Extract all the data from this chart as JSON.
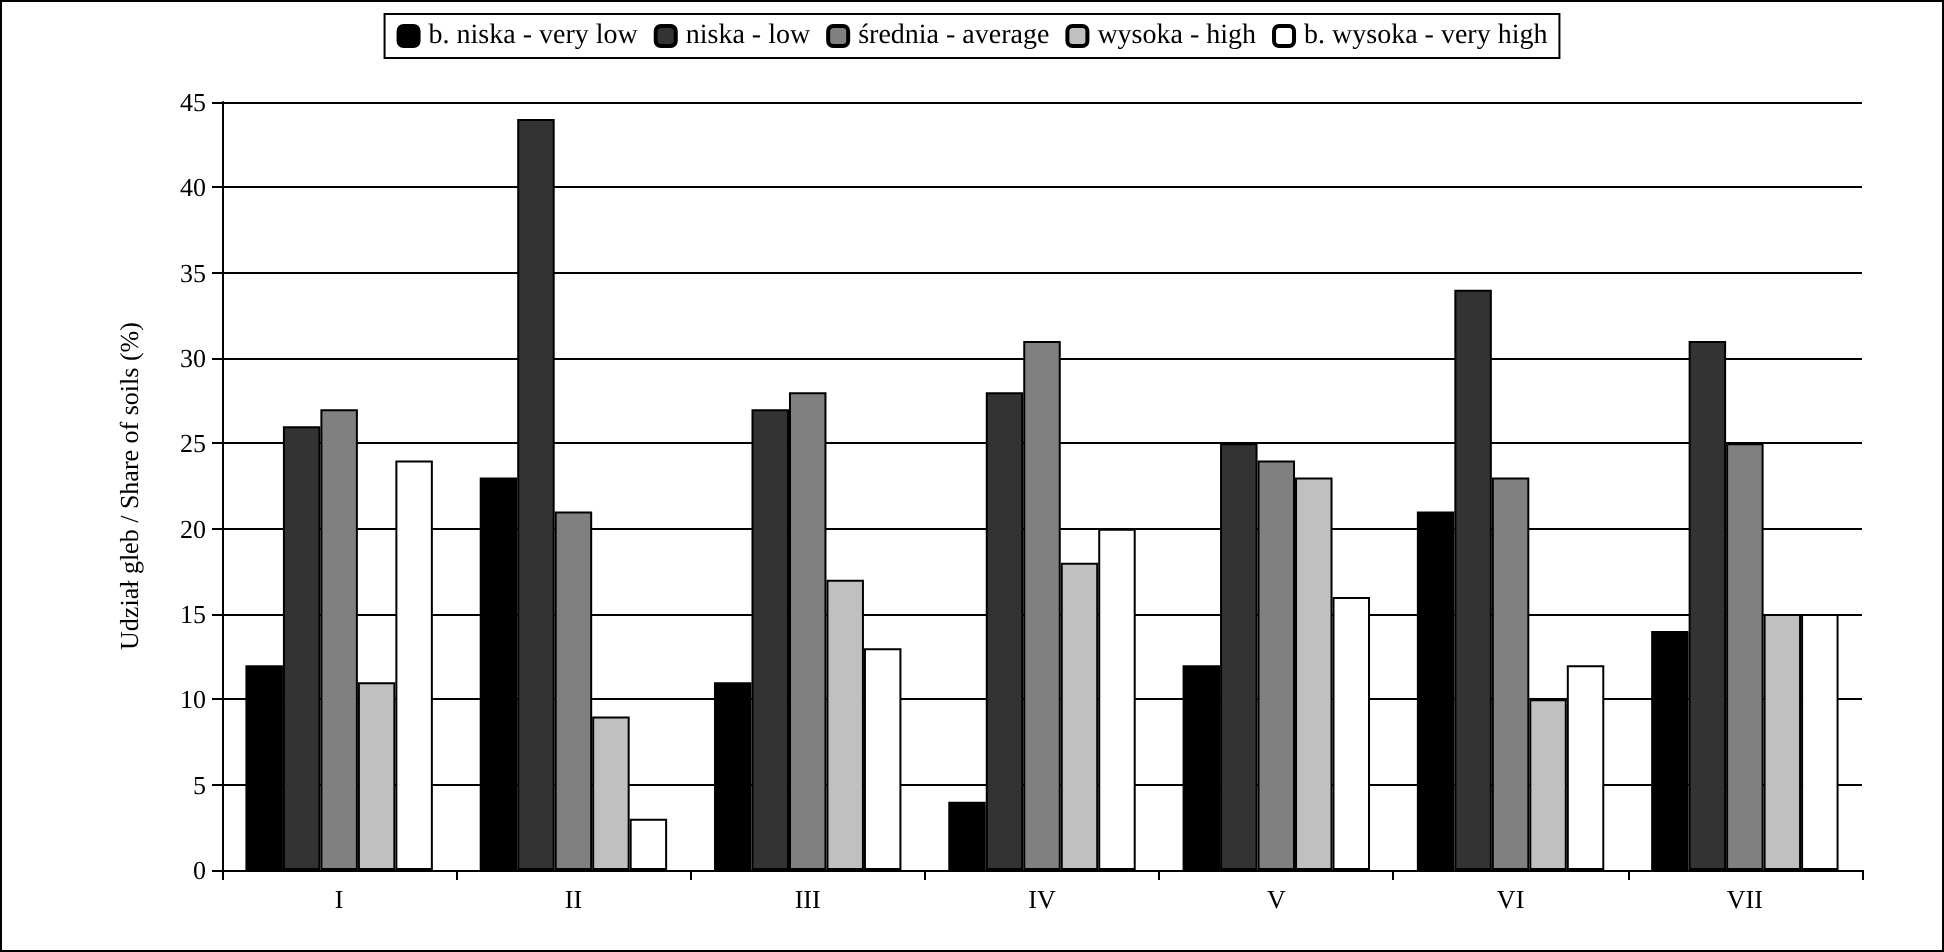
{
  "chart_data": {
    "type": "bar",
    "ylabel": "Udział gleb / Share of soils (%)",
    "categories": [
      "I",
      "II",
      "III",
      "IV",
      "V",
      "VI",
      "VII"
    ],
    "series": [
      {
        "name": "b. niska - very low",
        "color": "#000000",
        "values": [
          12,
          23,
          11,
          4,
          12,
          21,
          14
        ]
      },
      {
        "name": "niska - low",
        "color": "#333333",
        "values": [
          26,
          44,
          27,
          28,
          25,
          34,
          31
        ]
      },
      {
        "name": "średnia - average",
        "color": "#808080",
        "values": [
          27,
          21,
          28,
          31,
          24,
          23,
          25
        ]
      },
      {
        "name": "wysoka - high",
        "color": "#c0c0c0",
        "values": [
          11,
          9,
          17,
          18,
          23,
          10,
          15
        ]
      },
      {
        "name": "b. wysoka - very high",
        "color": "#ffffff",
        "values": [
          24,
          3,
          13,
          20,
          16,
          12,
          15
        ]
      }
    ],
    "ylim": [
      0,
      45
    ],
    "yticks": [
      0,
      5,
      10,
      15,
      20,
      25,
      30,
      35,
      40,
      45
    ],
    "grid": "y",
    "legend": "top"
  }
}
